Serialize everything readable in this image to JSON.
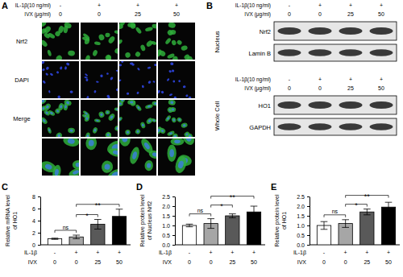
{
  "panel_A": {
    "label": "A",
    "conditions": [
      {
        "label": "IL-1β(10 ng/ml)",
        "values": [
          "-",
          "+",
          "+",
          "+"
        ]
      },
      {
        "label": "IVX (μg/ml)",
        "values": [
          "0",
          "0",
          "25",
          "50"
        ]
      }
    ],
    "rows": [
      "Nrf2",
      "DAPI",
      "Merge"
    ]
  },
  "panel_B": {
    "label": "B",
    "blots": [
      {
        "compartment": "Nucleus",
        "conditions": [
          {
            "label": "IL-1β(10 ng/ml)",
            "values": [
              "-",
              "+",
              "+",
              "+"
            ]
          },
          {
            "label": "IVX (μg/ml)",
            "values": [
              "0",
              "0",
              "25",
              "50"
            ]
          }
        ],
        "bands": [
          "Nrf2",
          "Lamin B"
        ]
      },
      {
        "compartment": "Whole Cell",
        "conditions": [
          {
            "label": "IL-1β(10 ng/ml)",
            "values": [
              "-",
              "+",
              "+",
              "+"
            ]
          },
          {
            "label": "IVX (μg/ml)",
            "values": [
              "0",
              "0",
              "25",
              "50"
            ]
          }
        ],
        "bands": [
          "HO1",
          "GAPDH"
        ]
      }
    ]
  },
  "chart_data": [
    {
      "type": "bar",
      "panel_label": "C",
      "ylabel": "Relative mRNA level of HO1",
      "treatment": {
        "label": "IL-1β",
        "values": [
          "-",
          "+",
          "+",
          "+"
        ]
      },
      "xlabel": "IVX",
      "categories": [
        "0",
        "0",
        "25",
        "50"
      ],
      "values": [
        1.0,
        1.3,
        3.4,
        4.7
      ],
      "errors": [
        0.1,
        0.3,
        0.8,
        1.2
      ],
      "colors": [
        "#ffffff",
        "#a6a6a6",
        "#595959",
        "#000000"
      ],
      "ylim": [
        0,
        8
      ],
      "yticks": [
        0,
        2,
        4,
        6,
        8
      ],
      "comparisons": [
        {
          "pair": [
            0,
            1
          ],
          "label": "ns"
        },
        {
          "pair": [
            1,
            2
          ],
          "label": "*"
        },
        {
          "pair": [
            1,
            3
          ],
          "label": "**"
        }
      ]
    },
    {
      "type": "bar",
      "panel_label": "D",
      "ylabel": "Relative protein level of Nucleus Nrf2",
      "treatment": {
        "label": "IL-1β",
        "values": [
          "-",
          "+",
          "+",
          "+"
        ]
      },
      "xlabel": "IVX",
      "categories": [
        "0",
        "0",
        "25",
        "50"
      ],
      "values": [
        1.0,
        1.1,
        1.5,
        1.7
      ],
      "errors": [
        0.07,
        0.25,
        0.1,
        0.3
      ],
      "colors": [
        "#ffffff",
        "#a6a6a6",
        "#595959",
        "#000000"
      ],
      "ylim": [
        0,
        2.5
      ],
      "yticks": [
        {
          "value": 0,
          "label": "0.0"
        },
        {
          "value": 0.5,
          "label": "0.5"
        },
        {
          "value": 1,
          "label": "1.0"
        },
        {
          "value": 1.5,
          "label": "1.5"
        },
        {
          "value": 2,
          "label": "2.0"
        },
        {
          "value": 2.5,
          "label": "2.5"
        }
      ],
      "comparisons": [
        {
          "pair": [
            0,
            1
          ],
          "label": "ns"
        },
        {
          "pair": [
            1,
            2
          ],
          "label": "*"
        },
        {
          "pair": [
            1,
            3
          ],
          "label": "**"
        }
      ]
    },
    {
      "type": "bar",
      "panel_label": "E",
      "ylabel": "Relative protein level of HO1",
      "treatment": {
        "label": "IL-1β",
        "values": [
          "-",
          "+",
          "+",
          "+"
        ]
      },
      "xlabel": "IVX",
      "categories": [
        "0",
        "0",
        "25",
        "50"
      ],
      "values": [
        1.0,
        1.1,
        1.7,
        1.95
      ],
      "errors": [
        0.2,
        0.2,
        0.15,
        0.25
      ],
      "colors": [
        "#ffffff",
        "#a6a6a6",
        "#595959",
        "#000000"
      ],
      "ylim": [
        0,
        2.5
      ],
      "yticks": [
        {
          "value": 0,
          "label": "0.0"
        },
        {
          "value": 0.5,
          "label": "0.5"
        },
        {
          "value": 1,
          "label": "1.0"
        },
        {
          "value": 1.5,
          "label": "1.5"
        },
        {
          "value": 2,
          "label": "2.0"
        },
        {
          "value": 2.5,
          "label": "2.5"
        }
      ],
      "comparisons": [
        {
          "pair": [
            0,
            1
          ],
          "label": "ns"
        },
        {
          "pair": [
            1,
            2
          ],
          "label": "*"
        },
        {
          "pair": [
            1,
            3
          ],
          "label": "**"
        }
      ]
    }
  ]
}
